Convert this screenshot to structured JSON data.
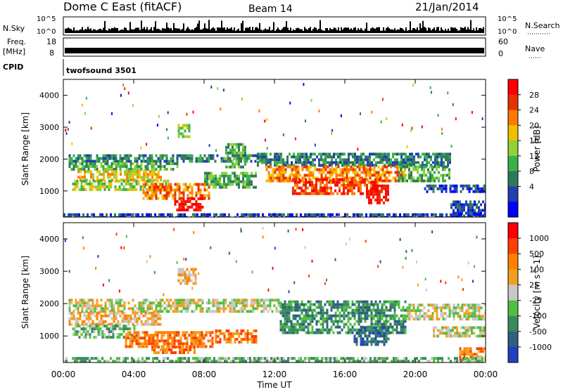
{
  "header": {
    "station": "Dome C East (fitACF)",
    "beam": "Beam 14",
    "date": "21/Jan/2014"
  },
  "strips": {
    "nsky_label": "N.Sky",
    "nsky_ticks": [
      "10^5",
      "10^0"
    ],
    "nsearch_label": "N.Search",
    "nsearch_ticks": [
      "10^5",
      "10^0"
    ],
    "freq_label": "Freq.",
    "freq_unit": "[MHz]",
    "freq_ticks": [
      "18",
      "8"
    ],
    "nave_label": "Nave",
    "nave_ticks": [
      "60",
      "0"
    ],
    "cpid_label": "CPID",
    "cpid_value": "twofsound 3501"
  },
  "chart_data": [
    {
      "type": "heatmap",
      "name": "power",
      "ylabel": "Slant Range [km]",
      "ylim": [
        180,
        4500
      ],
      "yticks": [
        1000,
        2000,
        3000,
        4000
      ],
      "xlim": [
        0,
        24
      ],
      "colorbar": {
        "label": "Power [dB]",
        "ticks": [
          "28",
          "24",
          "20",
          "16",
          "12",
          "8",
          "4"
        ],
        "colors": [
          "#0000ff",
          "#1f3fb0",
          "#2f7a5a",
          "#3bb04a",
          "#8fd23a",
          "#f0c000",
          "#ff7a00",
          "#e83000",
          "#ff0000"
        ]
      },
      "bands": [
        {
          "x0": 0.3,
          "x1": 11.5,
          "y0": 1900,
          "y1": 2150,
          "level": 2
        },
        {
          "x0": 0.3,
          "x1": 6.5,
          "y0": 1650,
          "y1": 1900,
          "level": 3
        },
        {
          "x0": 0.8,
          "x1": 5.5,
          "y0": 1350,
          "y1": 1650,
          "level": 5
        },
        {
          "x0": 0.5,
          "x1": 6.0,
          "y0": 1000,
          "y1": 1350,
          "level": 4
        },
        {
          "x0": 4.5,
          "x1": 8.3,
          "y0": 800,
          "y1": 1250,
          "level": 6
        },
        {
          "x0": 6.3,
          "x1": 7.9,
          "y0": 420,
          "y1": 800,
          "level": 8
        },
        {
          "x0": 8.0,
          "x1": 11.0,
          "y0": 1100,
          "y1": 1600,
          "level": 3
        },
        {
          "x0": 11.0,
          "x1": 22.0,
          "y0": 1800,
          "y1": 2200,
          "level": 2
        },
        {
          "x0": 11.5,
          "x1": 19.5,
          "y0": 1300,
          "y1": 1800,
          "level": 6
        },
        {
          "x0": 13.0,
          "x1": 18.0,
          "y0": 900,
          "y1": 1400,
          "level": 7
        },
        {
          "x0": 17.2,
          "x1": 18.5,
          "y0": 600,
          "y1": 1200,
          "level": 8
        },
        {
          "x0": 19.0,
          "x1": 22.0,
          "y0": 1300,
          "y1": 1800,
          "level": 3
        },
        {
          "x0": 20.5,
          "x1": 24.0,
          "y0": 1000,
          "y1": 1200,
          "level": 1
        },
        {
          "x0": 22.0,
          "x1": 24.0,
          "y0": 250,
          "y1": 700,
          "level": 1
        },
        {
          "x0": 9.2,
          "x1": 10.3,
          "y0": 1750,
          "y1": 2500,
          "level": 3
        },
        {
          "x0": 6.5,
          "x1": 7.2,
          "y0": 2700,
          "y1": 3100,
          "level": 4
        },
        {
          "x0": 0.0,
          "x1": 24.0,
          "y0": 180,
          "y1": 300,
          "level": 1
        }
      ]
    },
    {
      "type": "heatmap",
      "name": "velocity",
      "ylabel": "Slant Range [km]",
      "xlabel": "Time UT",
      "ylim": [
        180,
        4500
      ],
      "yticks": [
        1000,
        2000,
        3000,
        4000
      ],
      "xlim": [
        0,
        24
      ],
      "xticks": [
        "00:00",
        "04:00",
        "08:00",
        "12:00",
        "16:00",
        "20:00",
        "00:00"
      ],
      "colorbar": {
        "label": "Velocity [m s^-1]",
        "ticks": [
          "1000",
          "500",
          "100",
          "25",
          "-25",
          "-100",
          "-500",
          "-1000"
        ],
        "colors": [
          "#2040c0",
          "#306080",
          "#3a8a60",
          "#50c040",
          "#c8c8c8",
          "#f0a020",
          "#ff8000",
          "#ff4000",
          "#ff0000"
        ]
      },
      "bands": [
        {
          "x0": 0.3,
          "x1": 12.5,
          "y0": 1750,
          "y1": 2150,
          "level": 4
        },
        {
          "x0": 0.3,
          "x1": 5.5,
          "y0": 1350,
          "y1": 1750,
          "level": 5
        },
        {
          "x0": 0.5,
          "x1": 4.0,
          "y0": 1000,
          "y1": 1350,
          "level": 3
        },
        {
          "x0": 3.5,
          "x1": 8.5,
          "y0": 650,
          "y1": 1150,
          "level": 6
        },
        {
          "x0": 5.0,
          "x1": 7.5,
          "y0": 450,
          "y1": 700,
          "level": 6
        },
        {
          "x0": 8.5,
          "x1": 11.0,
          "y0": 800,
          "y1": 1200,
          "level": 6
        },
        {
          "x0": 12.3,
          "x1": 19.5,
          "y0": 1100,
          "y1": 2100,
          "level": 2
        },
        {
          "x0": 16.5,
          "x1": 18.5,
          "y0": 700,
          "y1": 1300,
          "level": 1
        },
        {
          "x0": 19.5,
          "x1": 24.0,
          "y0": 1500,
          "y1": 2000,
          "level": 4
        },
        {
          "x0": 21.0,
          "x1": 24.0,
          "y0": 1000,
          "y1": 1300,
          "level": 4
        },
        {
          "x0": 22.5,
          "x1": 24.0,
          "y0": 300,
          "y1": 650,
          "level": 6
        },
        {
          "x0": 0.0,
          "x1": 24.0,
          "y0": 180,
          "y1": 350,
          "level": 3
        },
        {
          "x0": 6.5,
          "x1": 7.5,
          "y0": 2600,
          "y1": 3100,
          "level": 5
        }
      ]
    }
  ]
}
